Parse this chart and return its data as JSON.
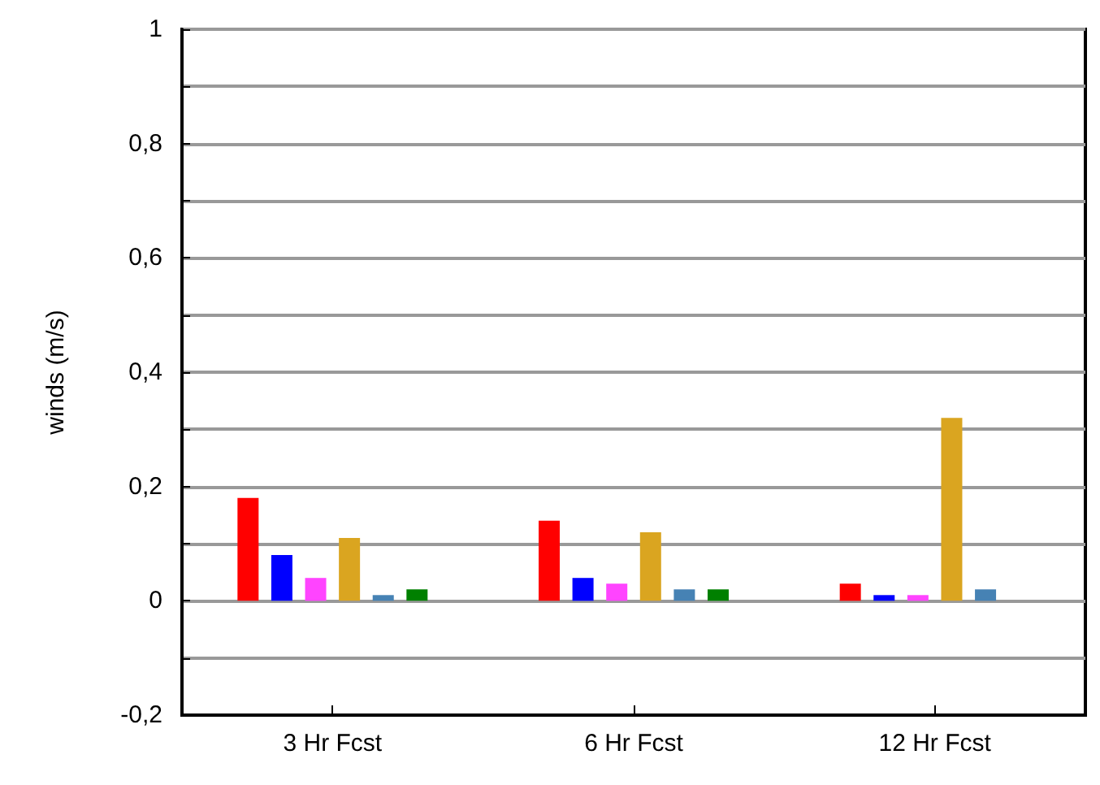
{
  "chart_data": {
    "type": "bar",
    "ylabel": "winds (m/s)",
    "categories": [
      "3 Hr Fcst",
      "6 Hr Fcst",
      "12 Hr Fcst"
    ],
    "series": [
      {
        "color": "#ff0000",
        "values": [
          0.18,
          0.14,
          0.03
        ]
      },
      {
        "color": "#0000ff",
        "values": [
          0.08,
          0.04,
          0.01
        ]
      },
      {
        "color": "#ff44ff",
        "values": [
          0.04,
          0.03,
          0.01
        ]
      },
      {
        "color": "#daa520",
        "values": [
          0.11,
          0.12,
          0.32
        ]
      },
      {
        "color": "#4682b4",
        "values": [
          0.01,
          0.02,
          0.02
        ]
      },
      {
        "color": "#008000",
        "values": [
          0.02,
          0.02,
          null
        ]
      }
    ],
    "ylim": [
      -0.2,
      1
    ],
    "yticks": [
      {
        "value": -0.2,
        "label": "-0,2"
      },
      {
        "value": -0.1,
        "label": null
      },
      0,
      {
        "value": 0.1,
        "label": null
      },
      {
        "value": 0.2,
        "label": "0,2"
      },
      {
        "value": 0.3,
        "label": null
      },
      {
        "value": 0.4,
        "label": "0,4"
      },
      {
        "value": 0.5,
        "label": null
      },
      {
        "value": 0.6,
        "label": "0,6"
      },
      {
        "value": 0.7,
        "label": null
      },
      {
        "value": 0.8,
        "label": "0,8"
      },
      {
        "value": 0.9,
        "label": null
      },
      1
    ],
    "grid": "y"
  }
}
